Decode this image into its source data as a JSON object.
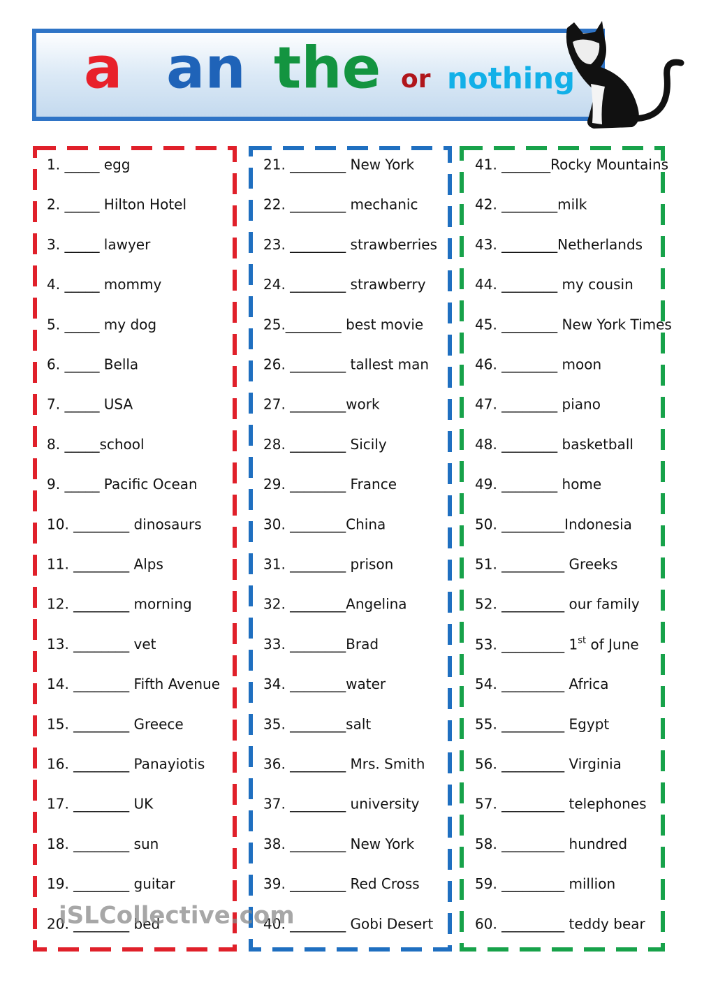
{
  "header": {
    "words": [
      "a",
      "an",
      "the",
      "or",
      "nothing"
    ]
  },
  "columns": [
    {
      "items": [
        "1.  _____ egg",
        "2. _____ Hilton Hotel",
        "3. _____ lawyer",
        "4. _____ mommy",
        "5. _____ my dog",
        "6. _____ Bella",
        "7. _____ USA",
        "8. _____school",
        "9. _____ Pacific Ocean",
        "10. ________ dinosaurs",
        "11. ________ Alps",
        "12. ________ morning",
        "13. ________ vet",
        "14. ________ Fifth Avenue",
        "15. ________ Greece",
        "16. ________ Panayiotis",
        "17. ________ UK",
        "18. ________ sun",
        "19. ________ guitar",
        "20. ________ bed"
      ]
    },
    {
      "items": [
        "21. ________ New York",
        "22. ________ mechanic",
        "23. ________ strawberries",
        "24. ________ strawberry",
        "25.________ best movie",
        "26. ________ tallest man",
        "27. ________work",
        "28. ________ Sicily",
        "29. ________ France",
        "30. ________China",
        "31. ________ prison",
        "32. ________Angelina",
        "33. ________Brad",
        "34. ________water",
        "35. ________salt",
        "36. ________ Mrs. Smith",
        "37. ________ university",
        "38. ________ New York",
        "39. ________ Red Cross",
        "40. ________ Gobi Desert"
      ]
    },
    {
      "items": [
        "41. _______Rocky Mountains",
        "42. ________milk",
        "43. ________Netherlands",
        "44. ________ my cousin",
        "45. ________ New York Times",
        "46. ________ moon",
        "47. ________ piano",
        "48. ________ basketball",
        "49. ________ home",
        "50. _________Indonesia",
        "51. _________ Greeks",
        "52. _________ our family",
        {
          "text": "53. _________ 1",
          "sup": "st",
          "rest": " of June"
        },
        "54. _________ Africa",
        "55. _________ Egypt",
        "56. _________ Virginia",
        "57. _________ telephones",
        "58. _________ hundred",
        "59. _________ million",
        "60. _________ teddy bear"
      ]
    }
  ],
  "watermark": "iSLCollective.com"
}
